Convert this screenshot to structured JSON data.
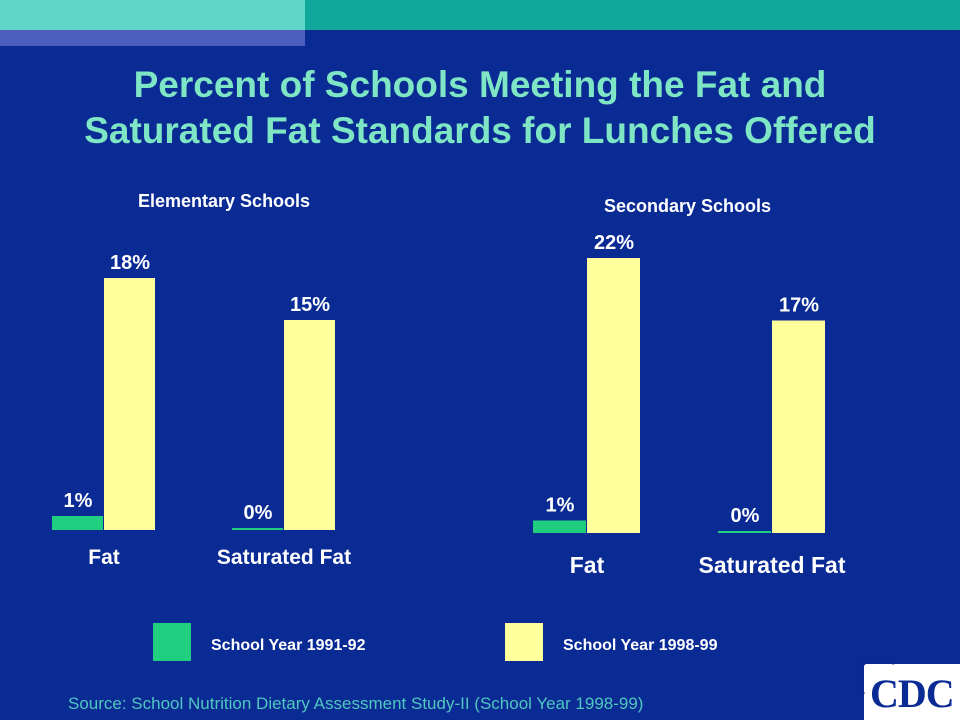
{
  "title": {
    "line1": "Percent of Schools Meeting the Fat and",
    "line2": "Saturated Fat Standards for Lunches Offered"
  },
  "colors": {
    "background": "#0a2a94",
    "series_1991": "#1fcf7f",
    "series_1998": "#ffff9c",
    "title": "#7ee6c4",
    "source": "#4fc7c0"
  },
  "chart_data": [
    {
      "type": "bar",
      "title": "Elementary Schools",
      "categories": [
        "Fat",
        "Saturated Fat"
      ],
      "series": [
        {
          "name": "School Year 1991-92",
          "values": [
            1,
            0
          ],
          "labels": [
            "1%",
            "0%"
          ]
        },
        {
          "name": "School Year 1998-99",
          "values": [
            18,
            15
          ],
          "labels": [
            "18%",
            "15%"
          ]
        }
      ]
    },
    {
      "type": "bar",
      "title": "Secondary Schools",
      "categories": [
        "Fat",
        "Saturated Fat"
      ],
      "series": [
        {
          "name": "School Year 1991-92",
          "values": [
            1,
            0
          ],
          "labels": [
            "1%",
            "0%"
          ]
        },
        {
          "name": "School Year 1998-99",
          "values": [
            22,
            17
          ],
          "labels": [
            "22%",
            "17%"
          ]
        }
      ]
    }
  ],
  "legend": {
    "item1": "School Year 1991-92",
    "item2": "School Year 1998-99"
  },
  "source": "Source:  School Nutrition Dietary Assessment Study-II (School Year 1998-99)",
  "logo": {
    "text": "CDC"
  }
}
